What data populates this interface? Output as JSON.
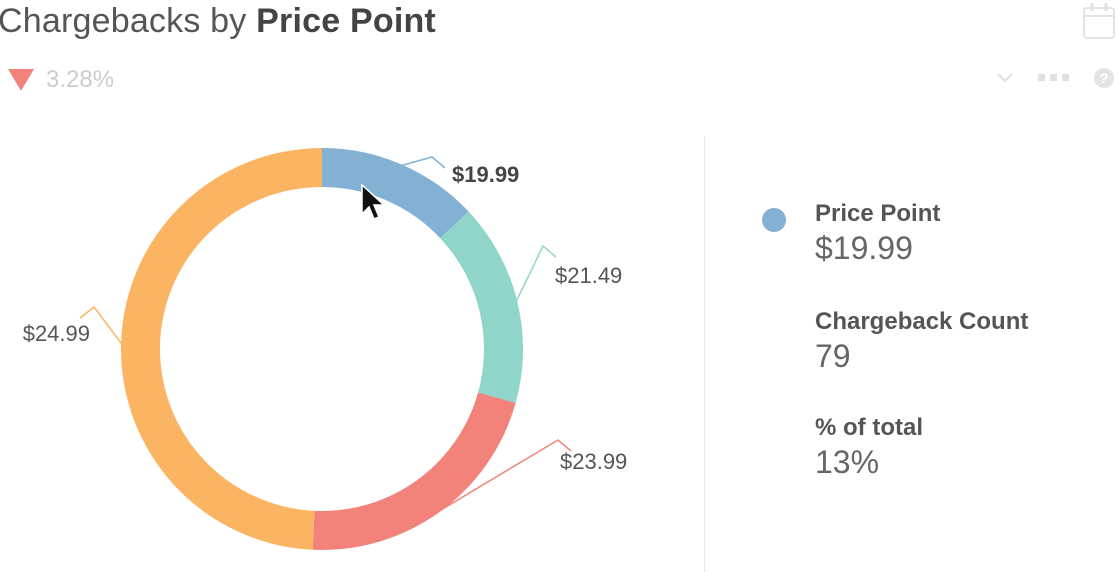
{
  "header": {
    "title_prefix": "Chargebacks by",
    "title_strong": "Price Point",
    "change": {
      "direction": "down",
      "value": "3.28%",
      "color": "#f3837a"
    },
    "icons": [
      "calendar-icon",
      "chevron-down-icon",
      "more-icon",
      "help-icon"
    ]
  },
  "chart_data": {
    "type": "pie",
    "variant": "donut",
    "categories": [
      "$19.99",
      "$21.49",
      "$23.99",
      "$24.99"
    ],
    "values": [
      79,
      99,
      130,
      299
    ],
    "colors": [
      "#82b1d4",
      "#8fd5c9",
      "#f3837a",
      "#fbb462"
    ],
    "highlighted": "$19.99"
  },
  "details": {
    "color": "#82b1d4",
    "fields": [
      {
        "label": "Price Point",
        "value": "$19.99"
      },
      {
        "label": "Chargeback Count",
        "value": "79"
      },
      {
        "label": "% of total",
        "value": "13%"
      }
    ]
  }
}
